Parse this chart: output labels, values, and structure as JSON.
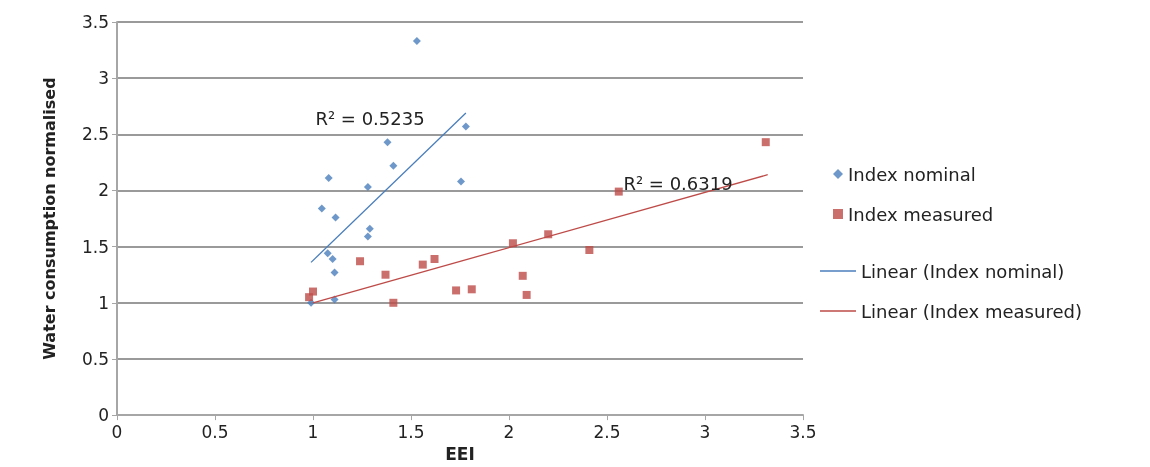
{
  "chart_data": {
    "type": "scatter",
    "xlabel": "EEI",
    "ylabel": "Water consumption normalised",
    "xlim": [
      0,
      3.5
    ],
    "xticks": [
      0,
      0.5,
      1,
      1.5,
      2,
      2.5,
      3,
      3.5
    ],
    "ylim": [
      0,
      3.5
    ],
    "yticks": [
      0,
      0.5,
      1,
      1.5,
      2,
      2.5,
      3,
      3.5
    ],
    "grid": "y",
    "legend": "right",
    "series": [
      {
        "name": "Index nominal",
        "color": "#4a7ebb",
        "marker": "diamond",
        "x": [
          1.53,
          1.78,
          1.38,
          1.41,
          1.08,
          1.755,
          1.28,
          1.045,
          1.115,
          1.29,
          1.28,
          1.075,
          1.1,
          1.11,
          1.11,
          0.99
        ],
        "values": [
          3.33,
          2.57,
          2.43,
          2.22,
          2.11,
          2.08,
          2.03,
          1.84,
          1.76,
          1.66,
          1.59,
          1.44,
          1.39,
          1.27,
          1.03,
          1.0
        ]
      },
      {
        "name": "Index measured",
        "color": "#be4b48",
        "marker": "square",
        "x": [
          0.98,
          1.0,
          1.24,
          1.37,
          1.41,
          1.56,
          1.62,
          2.02,
          2.2,
          2.56,
          2.41,
          2.07,
          1.73,
          1.81,
          2.09,
          3.31
        ],
        "values": [
          1.05,
          1.1,
          1.37,
          1.25,
          1.0,
          1.34,
          1.39,
          1.53,
          1.61,
          1.99,
          1.47,
          1.24,
          1.11,
          1.12,
          1.07,
          2.43
        ]
      },
      {
        "name": "Linear (Index nominal)",
        "type": "line",
        "color": "#4a7ebb",
        "marker": "none",
        "x": [
          0.99,
          1.78
        ],
        "values": [
          1.36,
          2.69
        ]
      },
      {
        "name": "Linear (Index measured)",
        "type": "line",
        "color": "#be4b48",
        "marker": "none",
        "x": [
          1.0,
          3.32
        ],
        "values": [
          1.0,
          2.14
        ]
      }
    ],
    "annotations": [
      "R² = 0.5235",
      "R² = 0.6319"
    ]
  }
}
